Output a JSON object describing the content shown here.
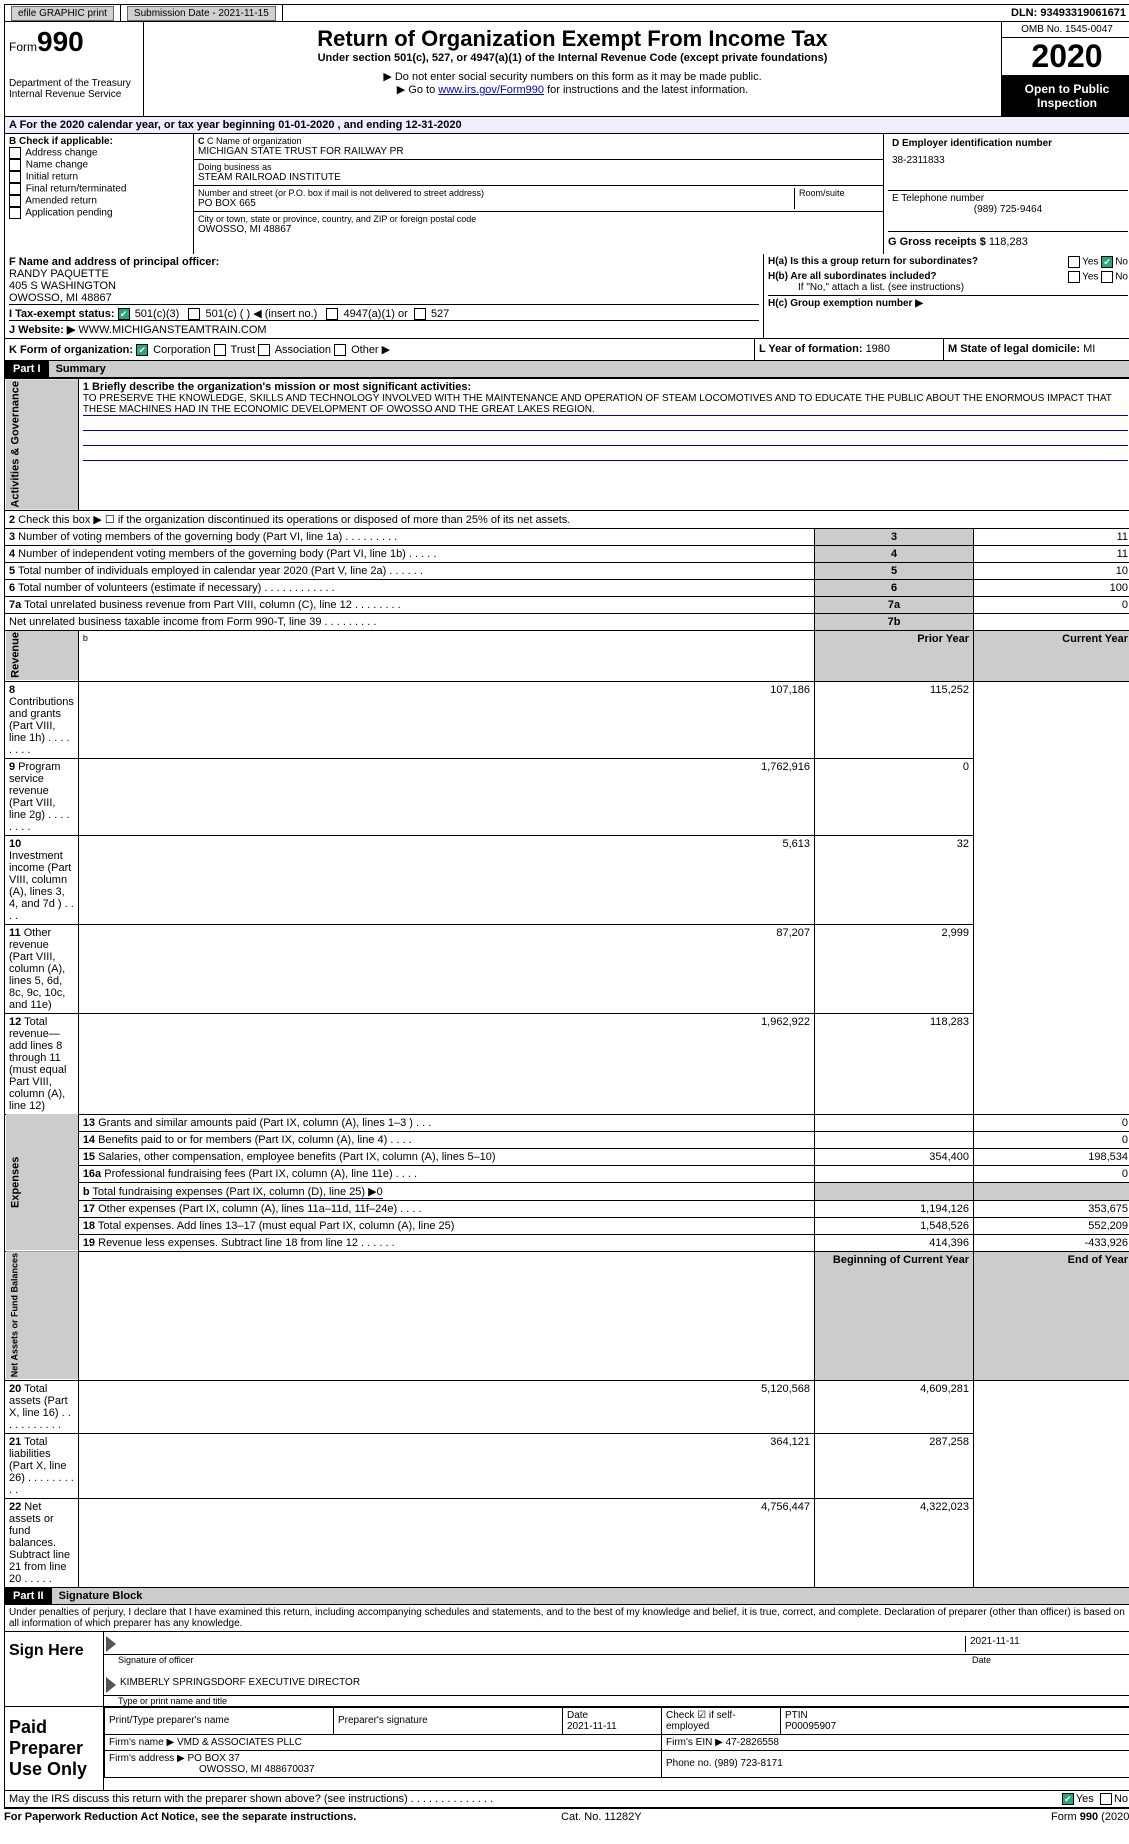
{
  "topbar": {
    "efile": "efile GRAPHIC print",
    "sub_label": "Submission Date - 2021-11-15",
    "dln": "DLN: 93493319061671"
  },
  "header": {
    "form_prefix": "Form",
    "form_num": "990",
    "dept1": "Department of the Treasury",
    "dept2": "Internal Revenue Service",
    "title": "Return of Organization Exempt From Income Tax",
    "subtitle": "Under section 501(c), 527, or 4947(a)(1) of the Internal Revenue Code (except private foundations)",
    "note1": "Do not enter social security numbers on this form as it may be made public.",
    "note2_pre": "Go to ",
    "note2_link": "www.irs.gov/Form990",
    "note2_post": " for instructions and the latest information.",
    "omb": "OMB No. 1545-0047",
    "year": "2020",
    "otp": "Open to Public Inspection"
  },
  "period": {
    "prefix": "A For the 2020 calendar year, or tax year beginning ",
    "start": "01-01-2020",
    "mid": " , and ending ",
    "end": "12-31-2020"
  },
  "box_b": {
    "title": "B Check if applicable:",
    "opts": [
      "Address change",
      "Name change",
      "Initial return",
      "Final return/terminated",
      "Amended return",
      "Application pending"
    ]
  },
  "box_c": {
    "lbl_name": "C Name of organization",
    "name": "MICHIGAN STATE TRUST FOR RAILWAY PR",
    "lbl_dba": "Doing business as",
    "dba": "STEAM RAILROAD INSTITUTE",
    "lbl_addr": "Number and street (or P.O. box if mail is not delivered to street address)",
    "lbl_suite": "Room/suite",
    "addr": "PO BOX 665",
    "lbl_city": "City or town, state or province, country, and ZIP or foreign postal code",
    "city": "OWOSSO, MI  48867"
  },
  "box_d": {
    "lbl": "D Employer identification number",
    "val": "38-2311833"
  },
  "box_e": {
    "lbl": "E Telephone number",
    "val": "(989) 725-9464"
  },
  "box_g": {
    "lbl": "G Gross receipts $ ",
    "val": "118,283"
  },
  "box_f": {
    "lbl": "F Name and address of principal officer:",
    "name": "RANDY PAQUETTE",
    "addr1": "405 S WASHINGTON",
    "addr2": "OWOSSO, MI  48867"
  },
  "box_h": {
    "ha": "H(a)  Is this a group return for subordinates?",
    "hb": "H(b)  Are all subordinates included?",
    "hb_note": "If \"No,\" attach a list. (see instructions)",
    "hc": "H(c)  Group exemption number ▶",
    "yes": "Yes",
    "no": "No"
  },
  "row_i": {
    "lbl": "I  Tax-exempt status:",
    "o1": "501(c)(3)",
    "o2": "501(c) (  ) ◀ (insert no.)",
    "o3": "4947(a)(1) or",
    "o4": "527"
  },
  "row_j": {
    "lbl": "J  Website: ▶",
    "val": "WWW.MICHIGANSTEAMTRAIN.COM"
  },
  "row_k": {
    "lbl": "K Form of organization:",
    "opts": [
      "Corporation",
      "Trust",
      "Association",
      "Other ▶"
    ]
  },
  "row_l": {
    "lbl": "L Year of formation: ",
    "val": "1980"
  },
  "row_m": {
    "lbl": "M State of legal domicile: ",
    "val": "MI"
  },
  "part1": {
    "hdr": "Part I",
    "title": "Summary"
  },
  "mission": {
    "q": "1  Briefly describe the organization's mission or most significant activities:",
    "text": "TO PRESERVE THE KNOWLEDGE, SKILLS AND TECHNOLOGY INVOLVED WITH THE MAINTENANCE AND OPERATION OF STEAM LOCOMOTIVES AND TO EDUCATE THE PUBLIC ABOUT THE ENORMOUS IMPACT THAT THESE MACHINES HAD IN THE ECONOMIC DEVELOPMENT OF OWOSSO AND THE GREAT LAKES REGION."
  },
  "gov_rows": [
    {
      "n": "2",
      "t": "Check this box ▶ ☐ if the organization discontinued its operations or disposed of more than 25% of its net assets.",
      "ln": "",
      "v": ""
    },
    {
      "n": "3",
      "t": "Number of voting members of the governing body (Part VI, line 1a)  .    .    .    .    .    .    .    .    .",
      "ln": "3",
      "v": "11"
    },
    {
      "n": "4",
      "t": "Number of independent voting members of the governing body (Part VI, line 1b)   .    .    .    .    .",
      "ln": "4",
      "v": "11"
    },
    {
      "n": "5",
      "t": "Total number of individuals employed in calendar year 2020 (Part V, line 2a)   .    .    .    .    .    .",
      "ln": "5",
      "v": "10"
    },
    {
      "n": "6",
      "t": "Total number of volunteers (estimate if necessary)   .    .    .    .    .    .    .    .    .    .    .    .",
      "ln": "6",
      "v": "100"
    },
    {
      "n": "7a",
      "t": "Total unrelated business revenue from Part VIII, column (C), line 12   .    .    .    .    .    .    .    .",
      "ln": "7a",
      "v": "0"
    },
    {
      "n": "",
      "t": "Net unrelated business taxable income from Form 990-T, line 39   .    .    .    .    .    .    .    .    .",
      "ln": "7b",
      "v": ""
    }
  ],
  "col_hdrs": {
    "b_note": "b",
    "py": "Prior Year",
    "cy": "Current Year",
    "boy": "Beginning of Current Year",
    "eoy": "End of Year"
  },
  "rev_rows": [
    {
      "n": "8",
      "t": "Contributions and grants (Part VIII, line 1h)   .    .    .    .    .    .    .    .",
      "py": "107,186",
      "cy": "115,252"
    },
    {
      "n": "9",
      "t": "Program service revenue (Part VIII, line 2g)   .    .    .    .    .    .    .    .",
      "py": "1,762,916",
      "cy": "0"
    },
    {
      "n": "10",
      "t": "Investment income (Part VIII, column (A), lines 3, 4, and 7d )   .    .    .    .",
      "py": "5,613",
      "cy": "32"
    },
    {
      "n": "11",
      "t": "Other revenue (Part VIII, column (A), lines 5, 6d, 8c, 9c, 10c, and 11e)",
      "py": "87,207",
      "cy": "2,999"
    },
    {
      "n": "12",
      "t": "Total revenue—add lines 8 through 11 (must equal Part VIII, column (A), line 12)",
      "py": "1,962,922",
      "cy": "118,283"
    }
  ],
  "exp_rows": [
    {
      "n": "13",
      "t": "Grants and similar amounts paid (Part IX, column (A), lines 1–3 )   .    .    .",
      "py": "",
      "cy": "0"
    },
    {
      "n": "14",
      "t": "Benefits paid to or for members (Part IX, column (A), line 4)   .    .    .    .",
      "py": "",
      "cy": "0"
    },
    {
      "n": "15",
      "t": "Salaries, other compensation, employee benefits (Part IX, column (A), lines 5–10)",
      "py": "354,400",
      "cy": "198,534"
    },
    {
      "n": "16a",
      "t": "Professional fundraising fees (Part IX, column (A), line 11e)   .    .    .    .",
      "py": "",
      "cy": "0"
    },
    {
      "n": "b",
      "t": "Total fundraising expenses (Part IX, column (D), line 25) ▶0",
      "py": "",
      "cy": "",
      "noval": true
    },
    {
      "n": "17",
      "t": "Other expenses (Part IX, column (A), lines 11a–11d, 11f–24e)   .    .    .    .",
      "py": "1,194,126",
      "cy": "353,675"
    },
    {
      "n": "18",
      "t": "Total expenses. Add lines 13–17 (must equal Part IX, column (A), line 25)",
      "py": "1,548,526",
      "cy": "552,209"
    },
    {
      "n": "19",
      "t": "Revenue less expenses. Subtract line 18 from line 12   .    .    .    .    .    .",
      "py": "414,396",
      "cy": "-433,926"
    }
  ],
  "net_rows": [
    {
      "n": "20",
      "t": "Total assets (Part X, line 16)   .    .    .    .    .    .    .    .    .    .    .",
      "py": "5,120,568",
      "cy": "4,609,281"
    },
    {
      "n": "21",
      "t": "Total liabilities (Part X, line 26)   .    .    .    .    .    .    .    .    .    .",
      "py": "364,121",
      "cy": "287,258"
    },
    {
      "n": "22",
      "t": "Net assets or fund balances. Subtract line 21 from line 20   .    .    .    .    .",
      "py": "4,756,447",
      "cy": "4,322,023"
    }
  ],
  "vlabels": {
    "gov": "Activities & Governance",
    "rev": "Revenue",
    "exp": "Expenses",
    "net": "Net Assets or Fund Balances"
  },
  "part2": {
    "hdr": "Part II",
    "title": "Signature Block",
    "decl": "Under penalties of perjury, I declare that I have examined this return, including accompanying schedules and statements, and to the best of my knowledge and belief, it is true, correct, and complete. Declaration of preparer (other than officer) is based on all information of which preparer has any knowledge."
  },
  "sign": {
    "here": "Sign Here",
    "sig_lbl": "Signature of officer",
    "date_lbl": "Date",
    "date": "2021-11-11",
    "name_lbl": "Type or print name and title",
    "name": "KIMBERLY SPRINGSDORF  EXECUTIVE DIRECTOR"
  },
  "paid": {
    "title": "Paid Preparer Use Only",
    "c1": "Print/Type preparer's name",
    "c2": "Preparer's signature",
    "c3": "Date",
    "c3v": "2021-11-11",
    "c4": "Check ☑ if self-employed",
    "c5": "PTIN",
    "c5v": "P00095907",
    "firm_lbl": "Firm's name    ▶",
    "firm": "VMD & ASSOCIATES PLLC",
    "ein_lbl": "Firm's EIN ▶",
    "ein": "47-2826558",
    "addr_lbl": "Firm's address ▶",
    "addr1": "PO BOX 37",
    "addr2": "OWOSSO, MI  488670037",
    "phone_lbl": "Phone no. ",
    "phone": "(989) 723-8171"
  },
  "discuss": {
    "q": "May the IRS discuss this return with the preparer shown above? (see instructions)   .    .    .    .    .    .    .    .    .    .    .    .    .    .",
    "yes": "Yes",
    "no": "No"
  },
  "footer": {
    "pra": "For Paperwork Reduction Act Notice, see the separate instructions.",
    "cat": "Cat. No. 11282Y",
    "form": "Form 990 (2020)"
  }
}
